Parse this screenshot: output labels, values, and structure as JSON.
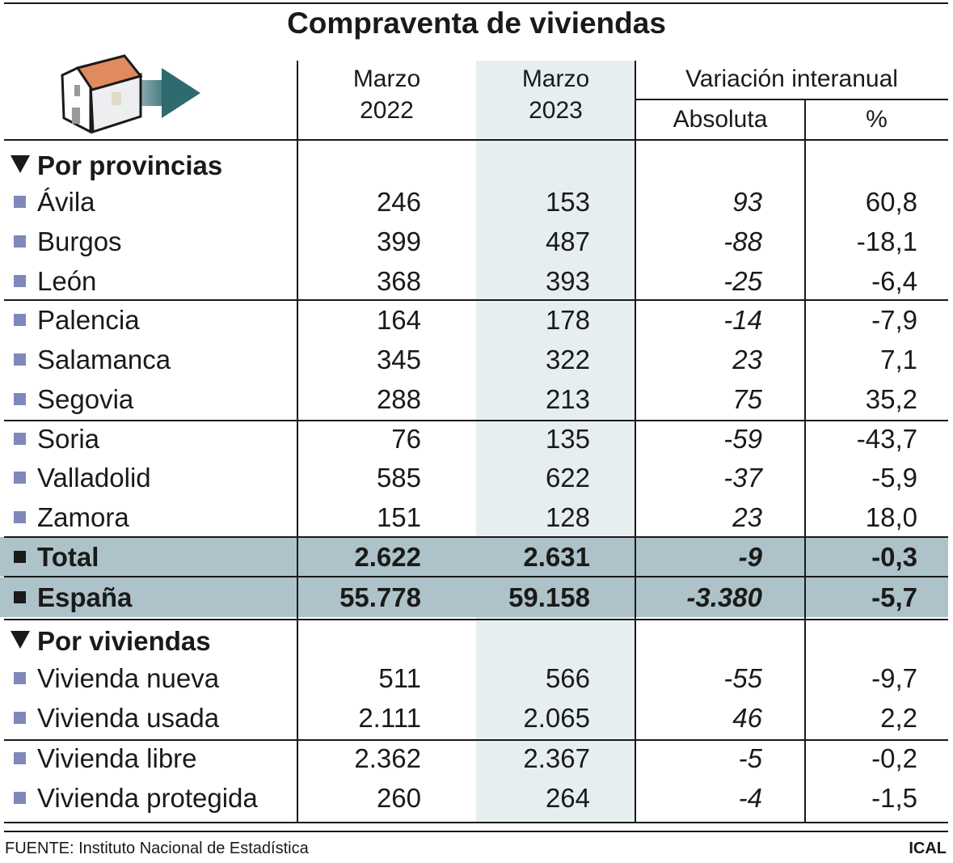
{
  "title": "Compraventa de viviendas",
  "header": {
    "col1": [
      "Marzo",
      "2022"
    ],
    "col2": [
      "Marzo",
      "2023"
    ],
    "variation": "Variación interanual",
    "absolute": "Absoluta",
    "percent": "%"
  },
  "colors": {
    "shade": "#e6eef0",
    "total_row": "#adc3c9",
    "bullet": "#8088bb",
    "arrow": "#2e6a6e",
    "roof": "#e08a60"
  },
  "sections": [
    {
      "label": "Por provincias",
      "rows": [
        {
          "label": "Ávila",
          "m2022": "246",
          "m2023": "153",
          "abs": "93",
          "pct": "60,8"
        },
        {
          "label": "Burgos",
          "m2022": "399",
          "m2023": "487",
          "abs": "-88",
          "pct": "-18,1"
        },
        {
          "label": "León",
          "m2022": "368",
          "m2023": "393",
          "abs": "-25",
          "pct": "-6,4"
        },
        {
          "label": "Palencia",
          "m2022": "164",
          "m2023": "178",
          "abs": "-14",
          "pct": "-7,9"
        },
        {
          "label": "Salamanca",
          "m2022": "345",
          "m2023": "322",
          "abs": "23",
          "pct": "7,1"
        },
        {
          "label": "Segovia",
          "m2022": "288",
          "m2023": "213",
          "abs": "75",
          "pct": "35,2"
        },
        {
          "label": "Soria",
          "m2022": "76",
          "m2023": "135",
          "abs": "-59",
          "pct": "-43,7"
        },
        {
          "label": "Valladolid",
          "m2022": "585",
          "m2023": "622",
          "abs": "-37",
          "pct": "-5,9"
        },
        {
          "label": "Zamora",
          "m2022": "151",
          "m2023": "128",
          "abs": "23",
          "pct": "18,0"
        }
      ]
    },
    {
      "label": "Por viviendas",
      "rows": [
        {
          "label": "Vivienda nueva",
          "m2022": "511",
          "m2023": "566",
          "abs": "-55",
          "pct": "-9,7"
        },
        {
          "label": "Vivienda usada",
          "m2022": "2.111",
          "m2023": "2.065",
          "abs": "46",
          "pct": "2,2"
        },
        {
          "label": "Vivienda libre",
          "m2022": "2.362",
          "m2023": "2.367",
          "abs": "-5",
          "pct": "-0,2"
        },
        {
          "label": "Vivienda protegida",
          "m2022": "260",
          "m2023": "264",
          "abs": "-4",
          "pct": "-1,5"
        }
      ]
    }
  ],
  "totals": [
    {
      "label": "Total",
      "m2022": "2.622",
      "m2023": "2.631",
      "abs": "-9",
      "pct": "-0,3"
    },
    {
      "label": "España",
      "m2022": "55.778",
      "m2023": "59.158",
      "abs": "-3.380",
      "pct": "-5,7"
    }
  ],
  "footer": {
    "source": "FUENTE: Instituto Nacional de Estadística",
    "credit": "ICAL"
  }
}
